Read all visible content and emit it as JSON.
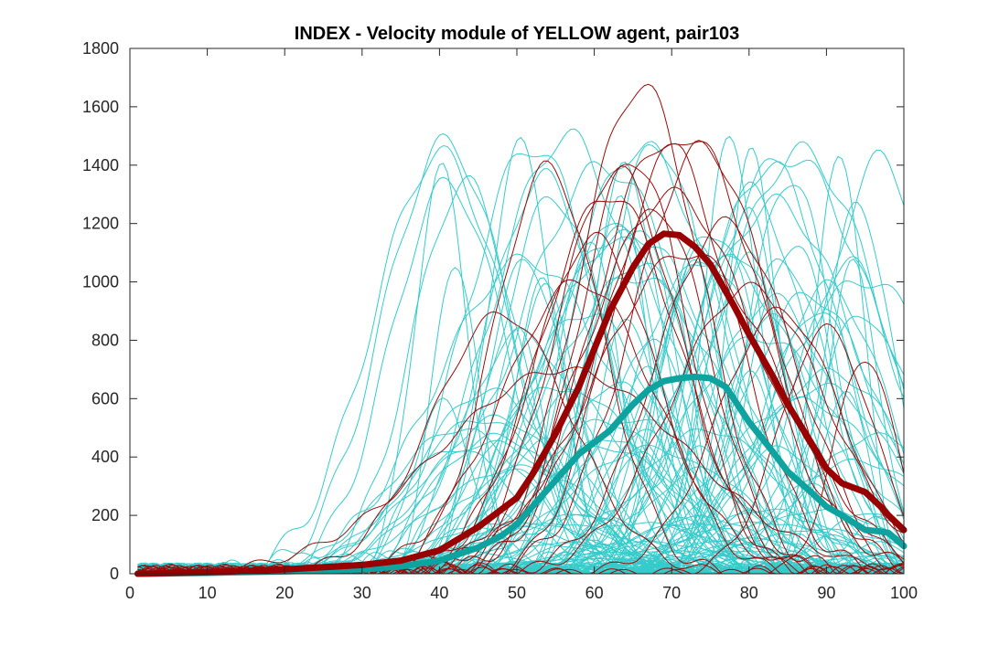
{
  "chart_data": {
    "type": "line",
    "title": "INDEX - Velocity module of YELLOW agent, pair103",
    "xlabel": "",
    "ylabel": "",
    "xlim": [
      0,
      100
    ],
    "ylim": [
      0,
      1800
    ],
    "xticks": [
      0,
      10,
      20,
      30,
      40,
      50,
      60,
      70,
      80,
      90,
      100
    ],
    "yticks": [
      0,
      200,
      400,
      600,
      800,
      1000,
      1200,
      1400,
      1600,
      1800
    ],
    "grid": false,
    "legend": "none",
    "colors": {
      "mean_red": "#990000",
      "mean_teal": "#0ea39f",
      "trial_red": "#9b0b0b",
      "trial_teal": "#36cbcb"
    },
    "series": [
      {
        "role": "mean-red",
        "x": [
          1,
          10,
          20,
          30,
          35,
          40,
          45,
          48,
          50,
          52,
          55,
          58,
          60,
          62,
          65,
          67,
          69,
          71,
          73,
          75,
          78,
          80,
          83,
          85,
          88,
          90,
          92,
          95,
          97,
          98,
          100
        ],
        "values": [
          0,
          5,
          15,
          30,
          45,
          80,
          160,
          220,
          260,
          340,
          480,
          640,
          770,
          900,
          1050,
          1130,
          1165,
          1160,
          1120,
          1060,
          920,
          820,
          680,
          580,
          450,
          360,
          310,
          280,
          230,
          200,
          150
        ]
      },
      {
        "role": "mean-teal",
        "x": [
          1,
          10,
          20,
          30,
          35,
          40,
          45,
          48,
          50,
          52,
          55,
          58,
          60,
          62,
          65,
          67,
          69,
          71,
          73,
          75,
          77,
          78,
          80,
          83,
          85,
          88,
          90,
          92,
          95,
          97,
          98,
          100
        ],
        "values": [
          0,
          3,
          8,
          15,
          25,
          45,
          90,
          130,
          170,
          230,
          320,
          410,
          450,
          490,
          580,
          630,
          660,
          670,
          675,
          670,
          640,
          600,
          520,
          420,
          350,
          280,
          230,
          200,
          150,
          145,
          140,
          95
        ]
      },
      {
        "role": "trial-red",
        "curves": [
          {
            "peak": 66,
            "amp": 1670,
            "width": 8
          },
          {
            "peak": 69,
            "amp": 1480,
            "width": 9
          },
          {
            "peak": 72,
            "amp": 1500,
            "width": 10
          },
          {
            "peak": 54,
            "amp": 1390,
            "width": 7
          },
          {
            "peak": 74,
            "amp": 1460,
            "width": 9
          },
          {
            "peak": 63,
            "amp": 1380,
            "width": 8
          },
          {
            "peak": 70,
            "amp": 1300,
            "width": 11
          },
          {
            "peak": 48,
            "amp": 890,
            "width": 9
          },
          {
            "peak": 77,
            "amp": 1200,
            "width": 9
          },
          {
            "peak": 60,
            "amp": 1150,
            "width": 8
          },
          {
            "peak": 68,
            "amp": 1250,
            "width": 7
          },
          {
            "peak": 80,
            "amp": 980,
            "width": 10
          },
          {
            "peak": 90,
            "amp": 840,
            "width": 6
          },
          {
            "peak": 95,
            "amp": 740,
            "width": 4
          },
          {
            "peak": 58,
            "amp": 1000,
            "width": 10
          },
          {
            "peak": 65,
            "amp": 1420,
            "width": 7
          },
          {
            "peak": 72,
            "amp": 1100,
            "width": 12
          },
          {
            "peak": 56,
            "amp": 700,
            "width": 16
          },
          {
            "peak": 84,
            "amp": 900,
            "width": 8
          },
          {
            "peak": 62,
            "amp": 1300,
            "width": 9
          }
        ]
      }
    ]
  }
}
